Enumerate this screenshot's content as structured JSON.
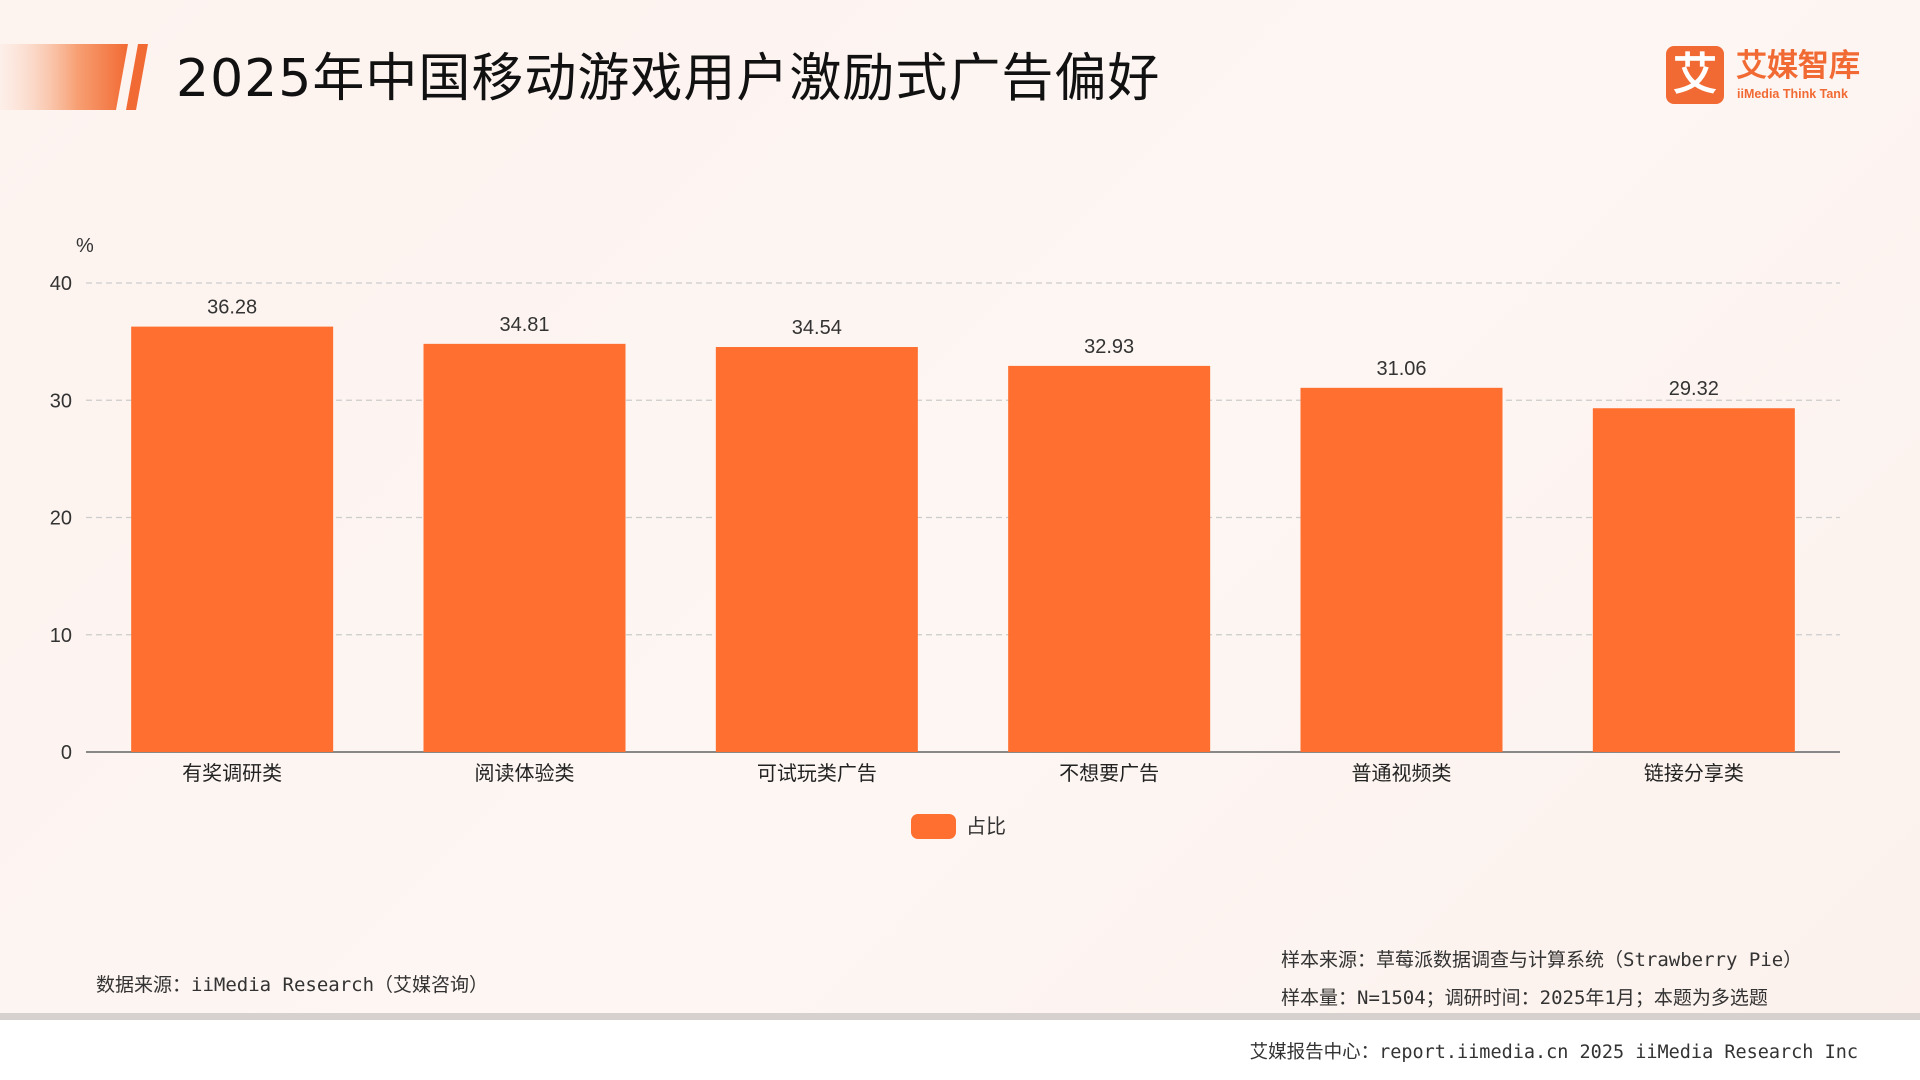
{
  "header": {
    "title": "2025年中国移动游戏用户激励式广告偏好"
  },
  "logo": {
    "mark": "艾",
    "name": "艾媒智库",
    "subtitle": "iiMedia Think Tank"
  },
  "chart_data": {
    "type": "bar",
    "title": "",
    "xlabel": "",
    "ylabel": "%",
    "ylim": [
      0,
      40
    ],
    "yticks": [
      0,
      10,
      20,
      30,
      40
    ],
    "grid": true,
    "legend_position": "bottom-center",
    "categories": [
      "有奖调研类",
      "阅读体验类",
      "可试玩类广告",
      "不想要广告",
      "普通视频类",
      "链接分享类"
    ],
    "series": [
      {
        "name": "占比",
        "values": [
          36.28,
          34.81,
          34.54,
          32.93,
          31.06,
          29.32
        ],
        "labels": [
          "36.28",
          "34.81",
          "34.54",
          "32.93",
          "31.06",
          "29.32"
        ],
        "color": "#ff6f30"
      }
    ]
  },
  "notes": {
    "data_source": "数据来源：iiMedia Research（艾媒咨询）",
    "sample_source": "样本来源：草莓派数据调查与计算系统（Strawberry Pie）",
    "sample_size": "样本量：N=1504；调研时间：2025年1月；本题为多选题"
  },
  "footer": {
    "text": "艾媒报告中心：report.iimedia.cn   2025 iiMedia Research Inc"
  },
  "colors": {
    "accent": "#f26a33",
    "bar": "#ff6f30",
    "grid": "#cccccc",
    "axis": "#888888"
  }
}
